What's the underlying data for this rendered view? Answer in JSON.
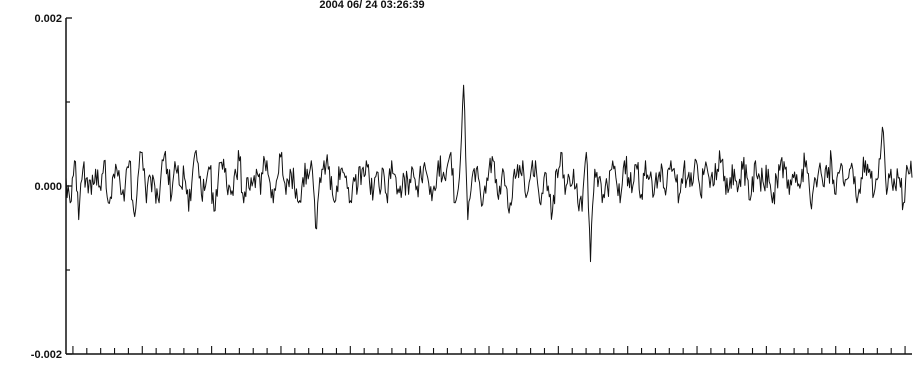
{
  "chart_data": {
    "type": "line",
    "title": "2004 06/ 24 03:26:39",
    "xlabel": "",
    "ylabel": "",
    "ylim": [
      -0.002,
      0.002
    ],
    "xlim": [
      0,
      1
    ],
    "y_tick_labels": [
      "0.002",
      "0.000",
      "-0.002"
    ],
    "y_tick_values": [
      0.002,
      0.0,
      -0.002
    ],
    "y_minor_ticks": [
      0.001,
      -0.001
    ],
    "x_minor_tick_count": 61,
    "grid": false,
    "legend": "none",
    "line_color": "#111111",
    "series": [
      {
        "x": [
          0.0,
          0.005,
          0.01,
          0.015,
          0.02,
          0.025,
          0.03,
          0.035,
          0.04,
          0.045,
          0.05,
          0.055,
          0.06,
          0.065,
          0.07,
          0.075,
          0.08,
          0.085,
          0.09,
          0.095,
          0.1,
          0.105,
          0.11,
          0.115,
          0.12,
          0.125,
          0.13,
          0.135,
          0.14,
          0.145,
          0.15,
          0.155,
          0.16,
          0.165,
          0.17,
          0.175,
          0.18,
          0.185,
          0.19,
          0.195,
          0.2,
          0.205,
          0.21,
          0.215,
          0.22,
          0.225,
          0.23,
          0.235,
          0.24,
          0.245,
          0.25,
          0.255,
          0.26,
          0.265,
          0.27,
          0.275,
          0.28,
          0.285,
          0.29,
          0.295,
          0.3,
          0.305,
          0.31,
          0.315,
          0.32,
          0.325,
          0.33,
          0.335,
          0.34,
          0.345,
          0.35,
          0.355,
          0.36,
          0.365,
          0.37,
          0.375,
          0.38,
          0.385,
          0.39,
          0.395,
          0.4,
          0.405,
          0.41,
          0.415,
          0.42,
          0.425,
          0.43,
          0.435,
          0.44,
          0.445,
          0.45,
          0.455,
          0.46,
          0.465,
          0.47,
          0.475,
          0.48,
          0.485,
          0.49,
          0.495,
          0.5,
          0.505,
          0.51,
          0.515,
          0.52,
          0.525,
          0.53,
          0.535,
          0.54,
          0.545,
          0.55,
          0.555,
          0.56,
          0.565,
          0.57,
          0.575,
          0.58,
          0.585,
          0.59,
          0.595,
          0.6,
          0.605,
          0.61,
          0.615,
          0.62,
          0.625,
          0.63,
          0.635,
          0.64,
          0.645,
          0.65,
          0.655,
          0.66,
          0.665,
          0.67,
          0.675,
          0.68,
          0.685,
          0.69,
          0.695,
          0.7,
          0.705,
          0.71,
          0.715,
          0.72,
          0.725,
          0.73,
          0.735,
          0.74,
          0.745,
          0.75,
          0.755,
          0.76,
          0.765,
          0.77,
          0.775,
          0.78,
          0.785,
          0.79,
          0.795,
          0.8,
          0.805,
          0.81,
          0.815,
          0.82,
          0.825,
          0.83,
          0.835,
          0.84,
          0.845,
          0.85,
          0.855,
          0.86,
          0.865,
          0.87,
          0.875,
          0.88,
          0.885,
          0.89,
          0.895,
          0.9,
          0.905,
          0.91,
          0.915,
          0.92,
          0.925,
          0.93,
          0.935,
          0.94,
          0.945,
          0.95,
          0.955,
          0.96,
          0.965,
          0.97,
          0.975,
          0.98,
          0.985,
          0.99,
          0.995,
          1.0
        ],
        "values": [
          0.0001,
          -0.0002,
          0.0003,
          -0.0004,
          0.0002,
          0.0001,
          -0.0001,
          0.0002,
          0.0,
          0.0003,
          -0.0002,
          0.0001,
          0.0002,
          -0.0001,
          0.0,
          0.0003,
          -0.0003,
          0.0001,
          0.0004,
          -0.0002,
          0.0001,
          0.0,
          -0.0002,
          0.0003,
          0.0002,
          -0.0001,
          0.0002,
          0.0,
          0.0001,
          -0.0003,
          0.0002,
          0.0003,
          -0.0001,
          0.0,
          0.0002,
          -0.0003,
          0.0001,
          0.0002,
          0.0,
          -0.0001,
          0.0002,
          0.0003,
          -0.0002,
          0.0001,
          0.0,
          0.0002,
          -0.0001,
          0.0003,
          0.0001,
          -0.0002,
          0.0001,
          0.0004,
          -0.0001,
          0.0002,
          0.0,
          -0.0002,
          0.0001,
          0.0002,
          0.0003,
          -0.0005,
          0.0001,
          0.0003,
          0.0002,
          -0.0001,
          0.0,
          0.0002,
          0.0001,
          -0.0002,
          0.0001,
          0.0,
          0.0002,
          0.0003,
          -0.0001,
          0.0001,
          0.0,
          0.0002,
          -0.0002,
          0.0003,
          0.0001,
          0.0,
          0.0001,
          -0.0001,
          0.0002,
          0.0,
          0.0001,
          0.0002,
          -0.0001,
          0.0,
          0.0003,
          0.0001,
          0.0002,
          0.0004,
          -0.0002,
          0.0001,
          0.0012,
          -0.0004,
          0.0001,
          0.0002,
          -0.0001,
          0.0,
          0.0002,
          0.0003,
          -0.0001,
          0.0001,
          0.0,
          -0.0002,
          0.0002,
          0.0001,
          0.0003,
          -0.0001,
          0.0002,
          0.0003,
          -0.0002,
          0.0001,
          0.0,
          -0.0003,
          0.0002,
          0.0004,
          -0.0001,
          0.0001,
          0.0002,
          -0.0002,
          -0.0003,
          0.0004,
          -0.0009,
          0.0002,
          0.0001,
          -0.0001,
          0.0,
          0.0002,
          0.0001,
          -0.0002,
          0.0003,
          0.0001,
          0.0,
          0.0002,
          -0.0001,
          0.0003,
          0.0001,
          -0.0001,
          0.0001,
          0.0002,
          0.0,
          0.0003,
          0.0001,
          -0.0001,
          0.0002,
          0.0001,
          0.0,
          0.0003,
          -0.0001,
          0.0002,
          0.0001,
          0.0,
          0.0002,
          0.0003,
          -0.0001,
          0.0001,
          0.0002,
          0.0,
          0.0002,
          0.0001,
          -0.0001,
          0.0003,
          0.0001,
          0.0,
          0.0002,
          -0.0002,
          0.0001,
          0.0003,
          0.0002,
          -0.0001,
          0.0001,
          0.0,
          0.0002,
          0.0003,
          -0.0002,
          0.0001,
          0.0002,
          0.0,
          0.0001,
          0.0003,
          -0.0001,
          0.0002,
          0.0,
          0.0001,
          0.0002,
          -0.0002,
          0.0001,
          0.0003,
          0.0002,
          -0.0001,
          0.0001,
          0.0007,
          -0.0001,
          0.0002,
          0.0,
          0.0001,
          -0.0002,
          0.0002,
          0.0001
        ]
      }
    ]
  }
}
